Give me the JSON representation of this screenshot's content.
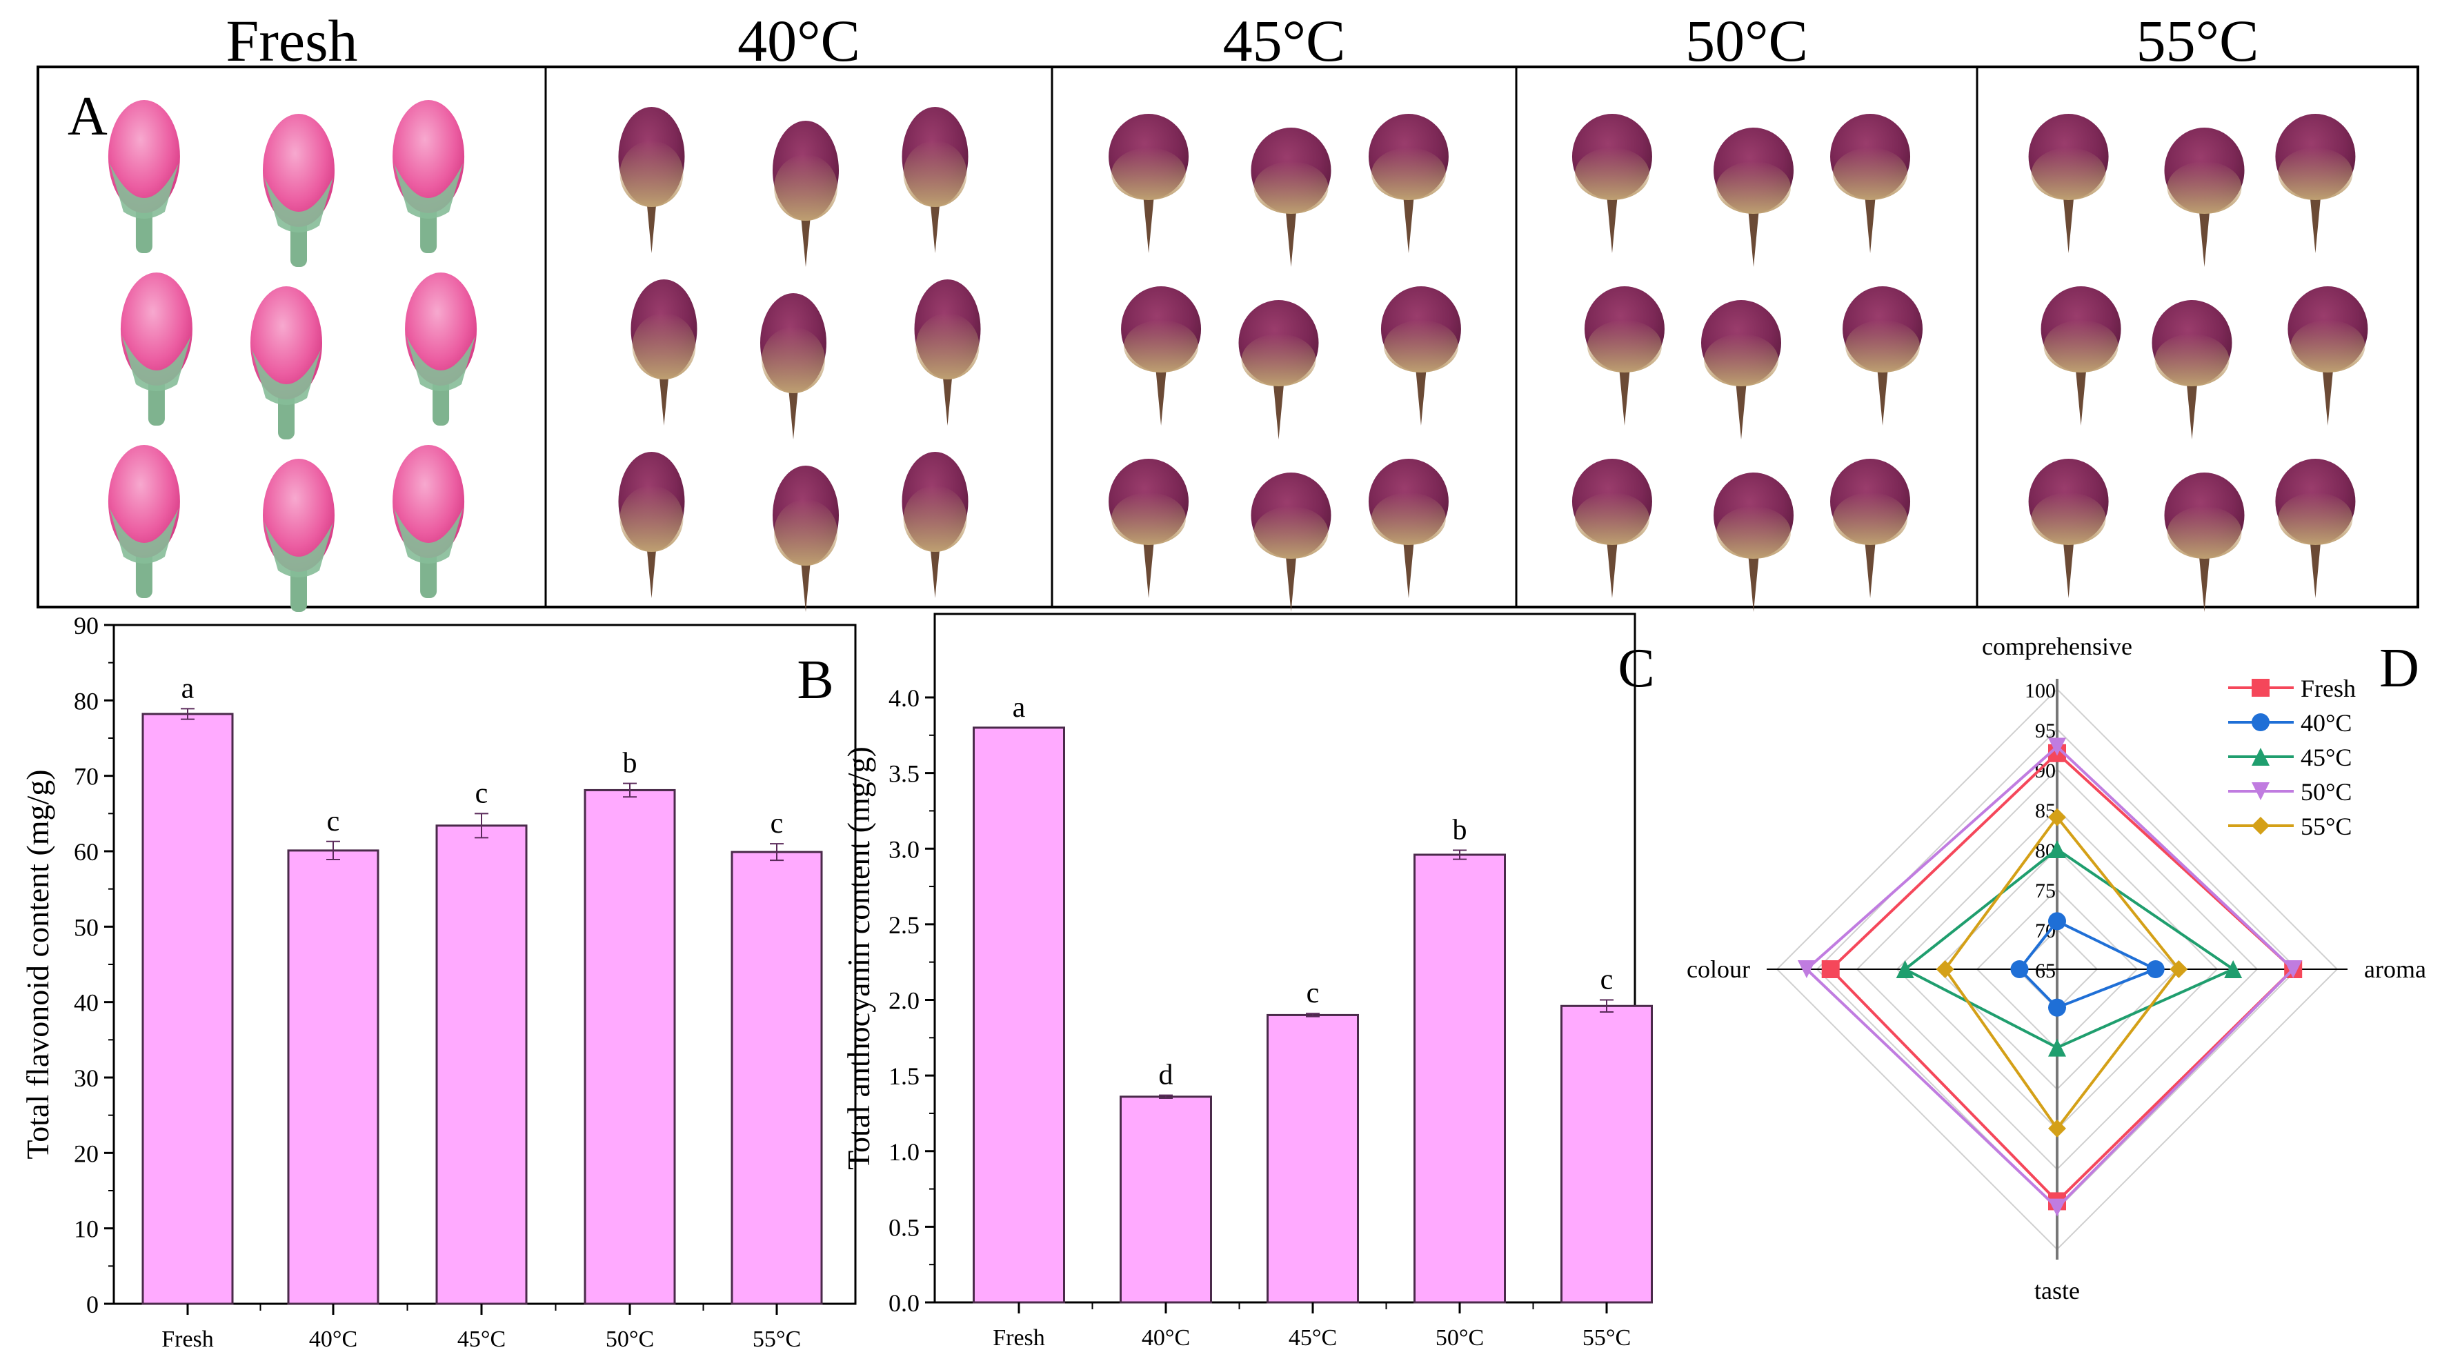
{
  "panel_a": {
    "label": "A",
    "groups": [
      "Fresh",
      "40°C",
      "45°C",
      "50°C",
      "55°C"
    ]
  },
  "colors": {
    "bar_fill": "#ffaaff",
    "bar_stroke": "#4a2a4a",
    "fresh_petal": "#ec5ea2",
    "fresh_sepal": "#86bc98",
    "dried_petal": "#7c2856",
    "dried_base": "#c2a67a"
  },
  "chart_data": [
    {
      "type": "bar",
      "panel_label": "B",
      "categories": [
        "Fresh",
        "40°C",
        "45°C",
        "50°C",
        "55°C"
      ],
      "values": [
        78.2,
        60.1,
        63.4,
        68.1,
        59.9
      ],
      "errors": [
        0.7,
        1.2,
        1.6,
        0.9,
        1.1
      ],
      "significance": [
        "a",
        "c",
        "c",
        "b",
        "c"
      ],
      "ylabel": "Total flavonoid content (mg/g)",
      "xlabel": "",
      "ylim": [
        0,
        90
      ],
      "yticks": [
        0,
        10,
        20,
        30,
        40,
        50,
        60,
        70,
        80,
        90
      ],
      "ytick_labels": [
        "0",
        "10",
        "20",
        "30",
        "40",
        "50",
        "60",
        "70",
        "80",
        "90"
      ]
    },
    {
      "type": "bar",
      "panel_label": "C",
      "categories": [
        "Fresh",
        "40°C",
        "45°C",
        "50°C",
        "55°C"
      ],
      "values": [
        3.8,
        1.36,
        1.9,
        2.96,
        1.96
      ],
      "errors": [
        0.0,
        0.01,
        0.01,
        0.03,
        0.04
      ],
      "significance": [
        "a",
        "d",
        "c",
        "b",
        "c"
      ],
      "ylabel": "Total anthocyanin content (mg/g)",
      "xlabel": "",
      "ylim": [
        0,
        4.2
      ],
      "yticks": [
        0,
        0.5,
        1.0,
        1.5,
        2.0,
        2.5,
        3.0,
        3.5,
        4.0
      ],
      "ytick_labels": [
        "0.0",
        "0.5",
        "1.0",
        "1.5",
        "2.0",
        "2.5",
        "3.0",
        "3.5",
        "4.0"
      ]
    },
    {
      "type": "radar",
      "panel_label": "D",
      "axes": [
        "comprehensive",
        "aroma",
        "taste",
        "colour"
      ],
      "rlim": [
        65,
        100
      ],
      "rticks": [
        65,
        70,
        75,
        80,
        85,
        90,
        95,
        100
      ],
      "rtick_labels": [
        "65",
        "70",
        "75",
        "80",
        "85",
        "90",
        "95",
        "100"
      ],
      "legend_position": "top-right",
      "series": [
        {
          "name": "Fresh",
          "color": "#f5475a",
          "marker": "square",
          "values": [
            92,
            94.5,
            94,
            93.3
          ]
        },
        {
          "name": "40°C",
          "color": "#1f6fd6",
          "marker": "circle",
          "values": [
            71,
            77.3,
            69.8,
            69.7
          ]
        },
        {
          "name": "45°C",
          "color": "#1f9e6e",
          "marker": "triangle-up",
          "values": [
            80,
            87,
            74.8,
            84
          ]
        },
        {
          "name": "50°C",
          "color": "#c07ce0",
          "marker": "triangle-down",
          "values": [
            92.8,
            94.5,
            94.8,
            96.3
          ]
        },
        {
          "name": "55°C",
          "color": "#d4a017",
          "marker": "diamond",
          "values": [
            84,
            80.2,
            84.9,
            79
          ]
        }
      ]
    }
  ]
}
